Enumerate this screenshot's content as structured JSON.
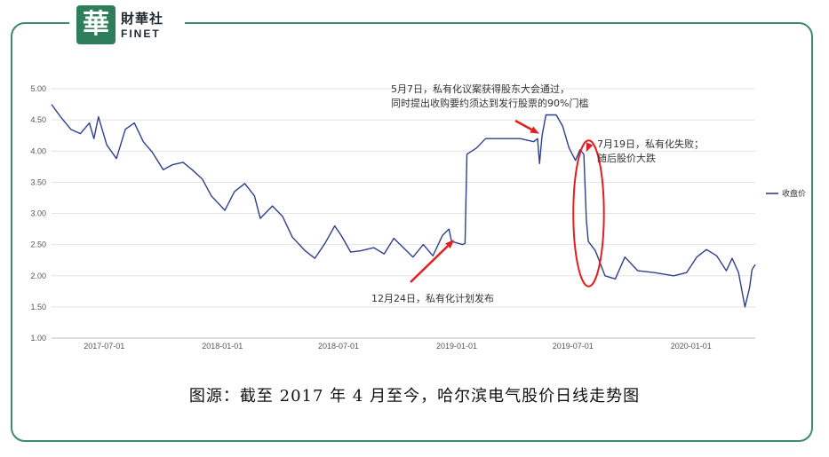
{
  "brand": {
    "seal_char": "華",
    "name_cn": "財華社",
    "name_en": "FINET",
    "color": "#2e7d5b"
  },
  "caption": "图源：截至 2017 年 4 月至今，哈尔滨电气股价日线走势图",
  "chart_data": {
    "type": "line",
    "title": "",
    "xlabel": "",
    "ylabel": "",
    "ylim": [
      1.0,
      5.0
    ],
    "yticks": [
      "1.00",
      "1.50",
      "2.00",
      "2.50",
      "3.00",
      "3.50",
      "4.00",
      "4.50",
      "5.00"
    ],
    "xlim": [
      "2017-04-10",
      "2020-04-10"
    ],
    "xticks": [
      "2017-07-01",
      "2018-01-01",
      "2018-07-01",
      "2019-01-01",
      "2019-07-01",
      "2020-01-01"
    ],
    "grid": true,
    "legend_position": "right",
    "series": [
      {
        "name": "收盘价",
        "color": "#2f3f8f",
        "points": [
          [
            "2017-04-10",
            4.75
          ],
          [
            "2017-04-24",
            4.55
          ],
          [
            "2017-05-10",
            4.35
          ],
          [
            "2017-05-25",
            4.28
          ],
          [
            "2017-06-08",
            4.45
          ],
          [
            "2017-06-15",
            4.2
          ],
          [
            "2017-06-22",
            4.55
          ],
          [
            "2017-07-05",
            4.1
          ],
          [
            "2017-07-20",
            3.88
          ],
          [
            "2017-08-03",
            4.35
          ],
          [
            "2017-08-17",
            4.45
          ],
          [
            "2017-08-31",
            4.15
          ],
          [
            "2017-09-14",
            3.98
          ],
          [
            "2017-10-01",
            3.7
          ],
          [
            "2017-10-15",
            3.78
          ],
          [
            "2017-11-01",
            3.82
          ],
          [
            "2017-11-15",
            3.7
          ],
          [
            "2017-12-01",
            3.55
          ],
          [
            "2017-12-15",
            3.28
          ],
          [
            "2018-01-05",
            3.05
          ],
          [
            "2018-01-20",
            3.35
          ],
          [
            "2018-02-05",
            3.48
          ],
          [
            "2018-02-20",
            3.28
          ],
          [
            "2018-03-01",
            2.92
          ],
          [
            "2018-03-20",
            3.12
          ],
          [
            "2018-04-05",
            2.95
          ],
          [
            "2018-04-20",
            2.62
          ],
          [
            "2018-05-10",
            2.4
          ],
          [
            "2018-05-25",
            2.28
          ],
          [
            "2018-06-10",
            2.52
          ],
          [
            "2018-06-25",
            2.8
          ],
          [
            "2018-07-05",
            2.65
          ],
          [
            "2018-07-20",
            2.38
          ],
          [
            "2018-08-05",
            2.4
          ],
          [
            "2018-08-25",
            2.45
          ],
          [
            "2018-09-10",
            2.35
          ],
          [
            "2018-09-25",
            2.6
          ],
          [
            "2018-10-10",
            2.45
          ],
          [
            "2018-10-25",
            2.3
          ],
          [
            "2018-11-10",
            2.5
          ],
          [
            "2018-11-25",
            2.32
          ],
          [
            "2018-12-10",
            2.65
          ],
          [
            "2018-12-20",
            2.75
          ],
          [
            "2018-12-24",
            2.55
          ],
          [
            "2019-01-10",
            2.5
          ],
          [
            "2019-01-14",
            2.52
          ],
          [
            "2019-01-17",
            3.95
          ],
          [
            "2019-02-01",
            4.05
          ],
          [
            "2019-02-15",
            4.2
          ],
          [
            "2019-03-10",
            4.2
          ],
          [
            "2019-04-10",
            4.2
          ],
          [
            "2019-05-01",
            4.15
          ],
          [
            "2019-05-07",
            4.2
          ],
          [
            "2019-05-10",
            3.8
          ],
          [
            "2019-05-14",
            4.25
          ],
          [
            "2019-05-20",
            4.58
          ],
          [
            "2019-06-05",
            4.58
          ],
          [
            "2019-06-15",
            4.4
          ],
          [
            "2019-06-25",
            4.05
          ],
          [
            "2019-07-05",
            3.85
          ],
          [
            "2019-07-12",
            4.02
          ],
          [
            "2019-07-18",
            3.95
          ],
          [
            "2019-07-22",
            2.9
          ],
          [
            "2019-07-25",
            2.55
          ],
          [
            "2019-08-05",
            2.4
          ],
          [
            "2019-08-20",
            2.0
          ],
          [
            "2019-09-05",
            1.95
          ],
          [
            "2019-09-20",
            2.3
          ],
          [
            "2019-10-10",
            2.08
          ],
          [
            "2019-11-05",
            2.05
          ],
          [
            "2019-12-05",
            2.0
          ],
          [
            "2019-12-25",
            2.05
          ],
          [
            "2020-01-10",
            2.3
          ],
          [
            "2020-01-25",
            2.42
          ],
          [
            "2020-02-10",
            2.32
          ],
          [
            "2020-02-25",
            2.08
          ],
          [
            "2020-03-05",
            2.28
          ],
          [
            "2020-03-15",
            2.05
          ],
          [
            "2020-03-25",
            1.5
          ],
          [
            "2020-04-01",
            1.8
          ],
          [
            "2020-04-05",
            2.1
          ],
          [
            "2020-04-10",
            2.18
          ]
        ]
      }
    ],
    "annotations": [
      {
        "text": [
          "5月7日，私有化议案获得股东大会通过，",
          "同时提出收购要约须达到发行股票的90%门槛"
        ],
        "date": "2019-05-07",
        "value": 4.22
      },
      {
        "text": [
          "7月19日，私有化失败；",
          "随后股价大跌"
        ],
        "date": "2019-07-19",
        "value": 4.0
      },
      {
        "text": [
          "12月24日，私有化计划发布"
        ],
        "date": "2018-12-24",
        "value": 2.55
      }
    ],
    "highlight": {
      "from": "2019-07-10",
      "to": "2019-08-10",
      "color": "#e02020"
    }
  }
}
